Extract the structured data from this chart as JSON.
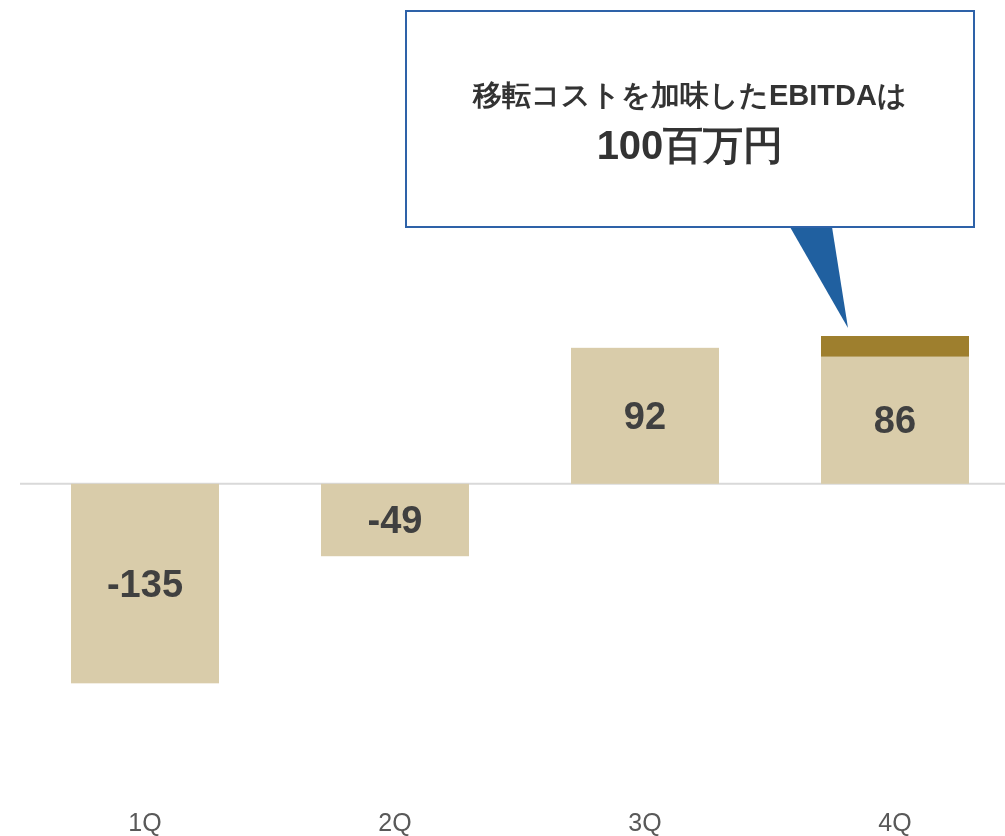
{
  "chart_data": {
    "type": "bar",
    "stacked": true,
    "categories": [
      "1Q",
      "2Q",
      "3Q",
      "4Q"
    ],
    "series": [
      {
        "color": "#d9ccaa",
        "values": [
          -135,
          -49,
          92,
          86
        ],
        "value_labels": [
          "-135",
          "-49",
          "92",
          "86"
        ]
      },
      {
        "color": "#9e7f2e",
        "values": [
          null,
          null,
          null,
          14
        ]
      }
    ],
    "annotations": [
      "移転コストを加味したEBITDAは\n100百万円"
    ],
    "ref_lines": [
      {
        "axis": "y",
        "value": 0,
        "color": "#d9d9d9"
      }
    ]
  }
}
